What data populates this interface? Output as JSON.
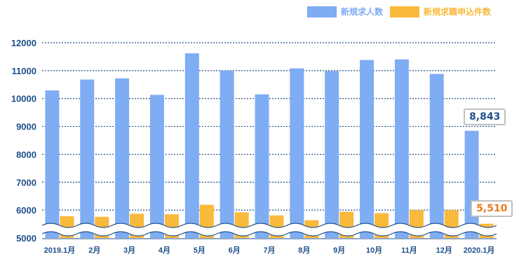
{
  "legend": {
    "series1_label": "新規求人数",
    "series2_label": "新規求職申込件数"
  },
  "colors": {
    "series1": "#7fadf3",
    "series2": "#f9b93b",
    "axis_text": "#1f4f8a",
    "gridline": "#1f4f8a",
    "callout1_text": "#1f4f8a",
    "callout2_text": "#e87b1c"
  },
  "callouts": {
    "series1_last": "8,843",
    "series2_last": "5,510"
  },
  "chart_data": {
    "type": "bar",
    "categories": [
      "2019.1月",
      "2月",
      "3月",
      "4月",
      "5月",
      "6月",
      "7月",
      "8月",
      "9月",
      "10月",
      "11月",
      "12月",
      "2020.1月"
    ],
    "series": [
      {
        "name": "新規求人数",
        "values": [
          10290,
          10680,
          10720,
          10130,
          11620,
          11000,
          10150,
          11080,
          10980,
          11380,
          11400,
          10880,
          8843
        ]
      },
      {
        "name": "新規求職申込件数",
        "values": [
          5780,
          5760,
          5870,
          5850,
          6190,
          5920,
          5810,
          5640,
          5940,
          5890,
          6000,
          6000,
          5510
        ]
      }
    ],
    "yticks": [
      5000,
      6000,
      7000,
      8000,
      9000,
      10000,
      11000,
      12000
    ],
    "ylim": [
      5000,
      12000
    ],
    "axis_break": true,
    "grid": "dotted horizontal",
    "legend_position": "top-right"
  }
}
